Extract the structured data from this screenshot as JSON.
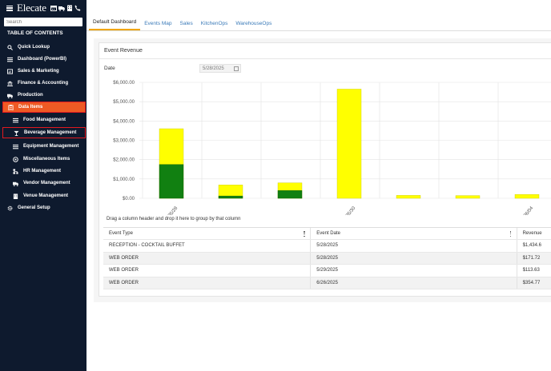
{
  "brand": {
    "name": "Elecate"
  },
  "search": {
    "placeholder": "Search"
  },
  "toc_label": "TABLE OF CONTENTS",
  "sidebar": {
    "items": [
      {
        "label": "Quick Lookup",
        "icon": "search-icon",
        "level": "top"
      },
      {
        "label": "Dashboard (PowerBI)",
        "icon": "list-icon",
        "level": "top"
      },
      {
        "label": "Sales & Marketing",
        "icon": "chart-icon",
        "level": "top"
      },
      {
        "label": "Finance & Accounting",
        "icon": "bank-icon",
        "level": "top"
      },
      {
        "label": "Production",
        "icon": "truck-icon",
        "level": "top"
      },
      {
        "label": "Data Items",
        "icon": "clipboard-icon",
        "level": "top",
        "state": "active"
      },
      {
        "label": "Food Management",
        "icon": "list-icon",
        "level": "sub"
      },
      {
        "label": "Beverage Management",
        "icon": "cocktail-icon",
        "level": "sub",
        "state": "highlight"
      },
      {
        "label": "Equipment Management",
        "icon": "list-icon",
        "level": "sub"
      },
      {
        "label": "Miscellaneous Items",
        "icon": "circle-icon",
        "level": "sub"
      },
      {
        "label": "HR Management",
        "icon": "org-icon",
        "level": "sub"
      },
      {
        "label": "Vendor Management",
        "icon": "truck-icon",
        "level": "sub"
      },
      {
        "label": "Venue Management",
        "icon": "building-icon",
        "level": "sub"
      },
      {
        "label": "General Setup",
        "icon": "gear-icon",
        "level": "top"
      }
    ]
  },
  "tabs": [
    {
      "label": "Default Dashboard",
      "active": true
    },
    {
      "label": "Events Map",
      "active": false
    },
    {
      "label": "Sales",
      "active": false
    },
    {
      "label": "KitchenOps",
      "active": false
    },
    {
      "label": "WarehouseOps",
      "active": false
    }
  ],
  "card": {
    "title": "Event Revenue",
    "date_label": "Date",
    "date_value": "5/28/2025"
  },
  "chart_data": {
    "type": "bar",
    "stacked": true,
    "y_ticks": [
      "$0.00",
      "$1,000.00",
      "$2,000.00",
      "$3,000.00",
      "$4,000.00",
      "$5,000.00",
      "$6,000.00"
    ],
    "ylim": [
      0,
      6000
    ],
    "x_tick_labels": [
      "05/28",
      "05/30",
      "06/04"
    ],
    "bars": [
      {
        "green": 1750,
        "yellow": 1850
      },
      {
        "green": 120,
        "yellow": 570
      },
      {
        "green": 400,
        "yellow": 400
      },
      {
        "green": 0,
        "yellow": 5650
      },
      {
        "green": 0,
        "yellow": 150
      },
      {
        "green": 0,
        "yellow": 140
      },
      {
        "green": 0,
        "yellow": 200
      }
    ],
    "colors": {
      "green": "#118011",
      "yellow": "#ffff00"
    },
    "grid": true
  },
  "grid": {
    "group_hint": "Drag a column header and drop it here to group by that column",
    "columns": [
      "Event Type",
      "Event Date",
      "Revenue"
    ],
    "rows": [
      [
        "RECEPTION - COCKTAIL BUFFET",
        "5/28/2025",
        "$1,434.6"
      ],
      [
        "WEB ORDER",
        "5/28/2025",
        "$171.72"
      ],
      [
        "WEB ORDER",
        "5/29/2025",
        "$113.63"
      ],
      [
        "WEB ORDER",
        "6/26/2025",
        "$354.77"
      ]
    ]
  }
}
